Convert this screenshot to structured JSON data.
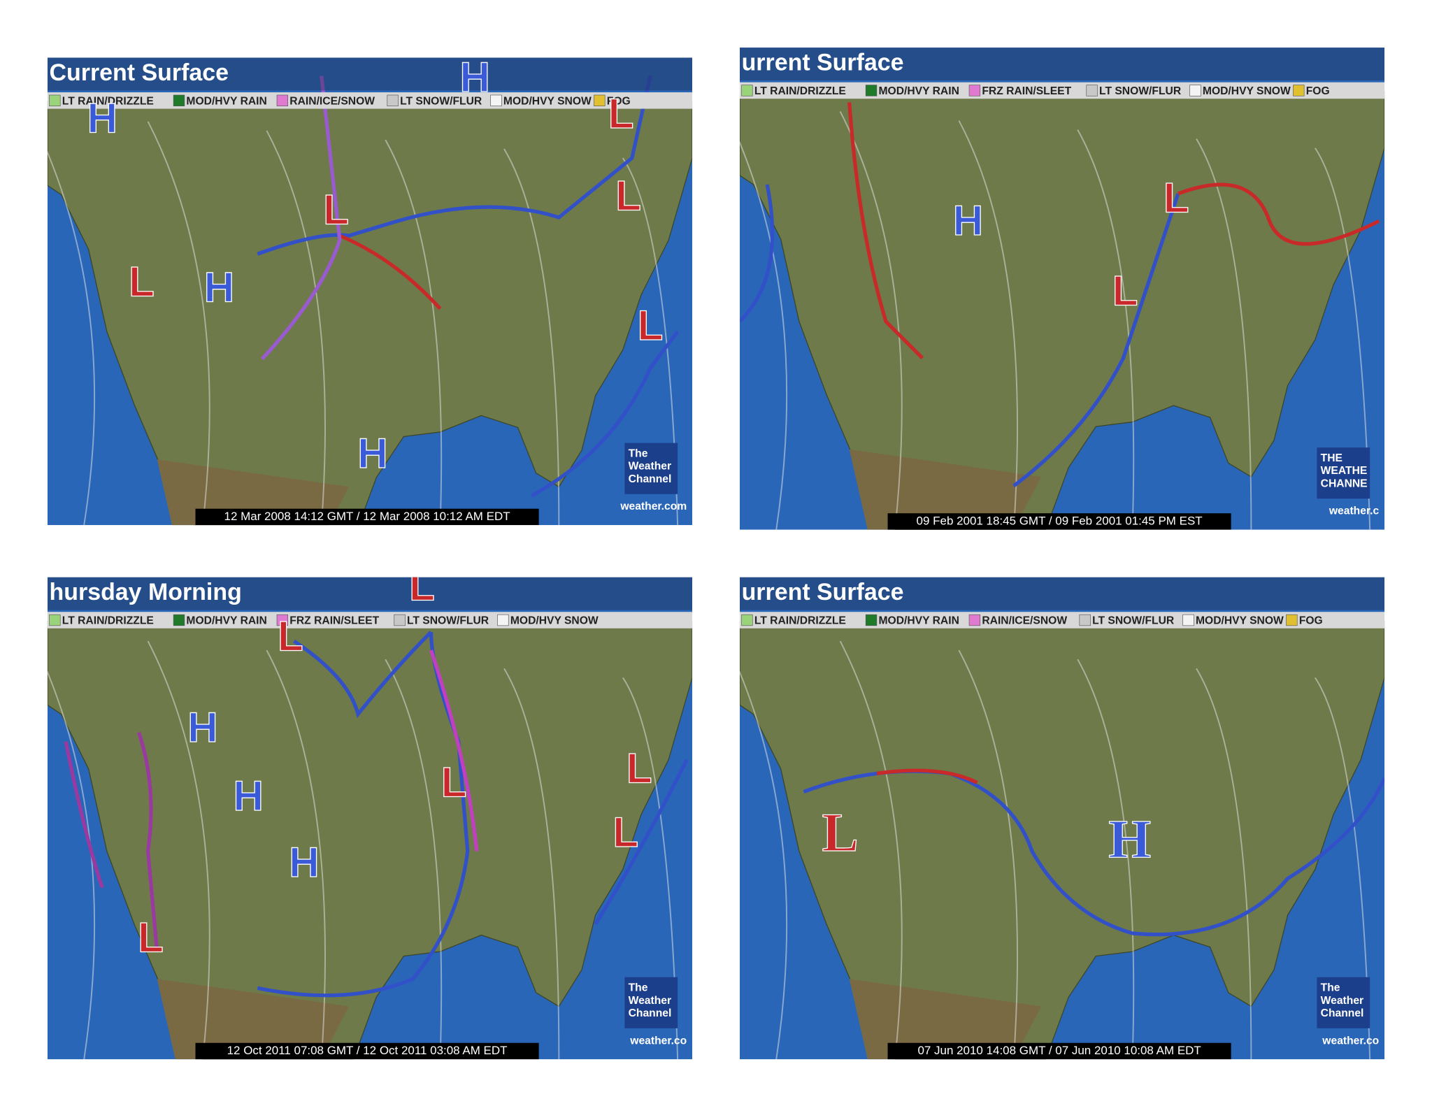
{
  "panels": [
    {
      "title": "Current Surface",
      "legend": [
        "LT RAIN/DRIZZLE",
        "MOD/HVY RAIN",
        "RAIN/ICE/SNOW",
        "LT SNOW/FLUR",
        "MOD/HVY SNOW",
        "FOG"
      ],
      "pressure_labels": [
        "H",
        "H",
        "L",
        "L",
        "L",
        "L",
        "H",
        "H",
        "L"
      ],
      "timestamp": "12 Mar 2008 14:12 GMT / 12 Mar 2008 10:12 AM EDT",
      "logo": [
        "The",
        "Weather",
        "Channel"
      ],
      "site": "weather.com"
    },
    {
      "title": "urrent Surface",
      "legend": [
        "LT RAIN/DRIZZLE",
        "MOD/HVY RAIN",
        "FRZ RAIN/SLEET",
        "LT SNOW/FLUR",
        "MOD/HVY SNOW",
        "FOG"
      ],
      "pressure_labels": [
        "H",
        "L",
        "L"
      ],
      "timestamp": "09 Feb 2001 18:45 GMT / 09 Feb 2001 01:45 PM EST",
      "logo": [
        "THE",
        "WEATHE",
        "CHANNE"
      ],
      "site": "weather.c"
    },
    {
      "title": "hursday Morning",
      "legend": [
        "LT RAIN/DRIZZLE",
        "MOD/HVY RAIN",
        "FRZ RAIN/SLEET",
        "LT SNOW/FLUR",
        "MOD/HVY SNOW"
      ],
      "pressure_labels": [
        "H",
        "H",
        "H",
        "L",
        "L",
        "L",
        "L",
        "L",
        "L"
      ],
      "timestamp": "12 Oct 2011 07:08 GMT / 12 Oct 2011 03:08 AM EDT",
      "logo": [
        "The",
        "Weather",
        "Channel"
      ],
      "site": "weather.co"
    },
    {
      "title": "urrent Surface",
      "legend": [
        "LT RAIN/DRIZZLE",
        "MOD/HVY RAIN",
        "RAIN/ICE/SNOW",
        "LT SNOW/FLUR",
        "MOD/HVY SNOW",
        "FOG"
      ],
      "pressure_labels": [
        "L",
        "H"
      ],
      "timestamp": "07 Jun 2010 14:08 GMT / 07 Jun 2010 10:08 AM EDT",
      "logo": [
        "The",
        "Weather",
        "Channel"
      ],
      "site": "weather.co"
    }
  ]
}
